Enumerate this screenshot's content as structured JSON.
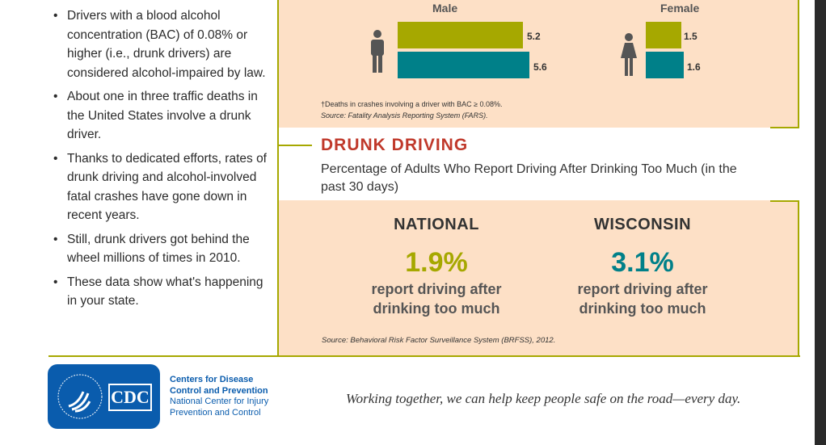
{
  "bullets": [
    "Drivers with a blood alcohol concentration (BAC) of 0.08% or higher (i.e., drunk drivers) are considered alcohol-impaired by law.",
    "About one in three traffic deaths in the United States involve a drunk driver.",
    "Thanks to dedicated efforts, rates of drunk driving and alcohol-involved fatal crashes have gone down in recent years.",
    "Still, drunk drivers got behind the wheel millions of times in 2010.",
    "These data show what's happening in your state."
  ],
  "deaths_chart": {
    "male_label": "Male",
    "female_label": "Female",
    "male_values": [
      "5.2",
      "5.6"
    ],
    "female_values": [
      "1.5",
      "1.6"
    ],
    "colors": [
      "#a6a800",
      "#008089"
    ],
    "footnote": "†Deaths in crashes involving a driver with BAC ≥ 0.08%.",
    "source": "Source: Fatality Analysis Reporting System (FARS)."
  },
  "drunk_driving": {
    "title": "DRUNK DRIVING",
    "subtitle": "Percentage of Adults Who Report Driving After Drinking Too Much (in the past 30 days)",
    "national": {
      "label": "NATIONAL",
      "value": "1.9%",
      "text": "report driving after drinking too much"
    },
    "state": {
      "label": "WISCONSIN",
      "value": "3.1%",
      "text": "report driving after drinking too much"
    },
    "source": "Source: Behavioral Risk Factor Surveillance System (BRFSS), 2012."
  },
  "footer": {
    "logo_text": "CDC",
    "org_line1": "Centers for Disease",
    "org_line2": "Control and Prevention",
    "center_line1": "National Center for Injury",
    "center_line2": "Prevention and Control",
    "tagline": "Working together, we can help keep people safe on the road—every day."
  }
}
